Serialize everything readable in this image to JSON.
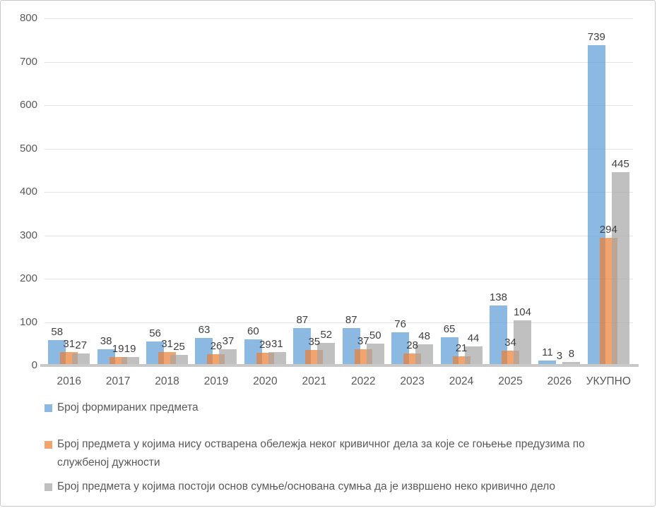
{
  "chart_data": {
    "type": "bar",
    "title": "",
    "xlabel": "",
    "ylabel": "",
    "categories": [
      "2016",
      "2017",
      "2018",
      "2019",
      "2020",
      "2021",
      "2022",
      "2023",
      "2024",
      "2025",
      "2026",
      "УКУПНО"
    ],
    "series": [
      {
        "name": "Број формираних предмета",
        "color": "#5B9BD5",
        "values": [
          58,
          38,
          56,
          63,
          60,
          87,
          87,
          76,
          65,
          138,
          11,
          739
        ]
      },
      {
        "name": "Број предмета у којима нису остварена обележја неког кривичног дела за које се гоњење предузима по службеној дужности",
        "color": "#ED7D31",
        "values": [
          31,
          19,
          31,
          26,
          29,
          35,
          37,
          28,
          21,
          34,
          3,
          294
        ]
      },
      {
        "name": "Број предмета у којима постоји основ сумње/основана сумња да је извршено неко кривично дело",
        "color": "#A5A5A5",
        "values": [
          27,
          19,
          25,
          37,
          31,
          52,
          50,
          48,
          44,
          104,
          8,
          445
        ]
      }
    ],
    "ylim": [
      0,
      800
    ],
    "ytick_step": 100,
    "grid": true,
    "legend_position": "bottom"
  },
  "colors": {
    "bar_blue": "#5B9BD5",
    "bar_orange": "#ED7D31",
    "bar_gray": "#A5A5A5",
    "axis_text": "#595959",
    "data_label_text": "#3f3f3f",
    "gridline": "#e4e4e4",
    "axis_line": "#c9c9c9",
    "frame_border": "#c9c9c9"
  }
}
